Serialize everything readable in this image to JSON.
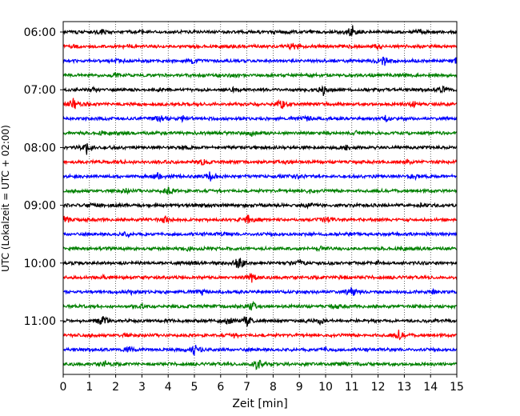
{
  "chart_data": {
    "type": "line",
    "xlabel": "Zeit  [min]",
    "ylabel": "UTC (Lokalzeit = UTC + 02:00)",
    "xlim": [
      0,
      15
    ],
    "x_ticks": [
      "0",
      "1",
      "2",
      "3",
      "4",
      "5",
      "6",
      "7",
      "8",
      "9",
      "10",
      "11",
      "12",
      "13",
      "14",
      "15"
    ],
    "y_ticks": [
      "06:00",
      "07:00",
      "08:00",
      "09:00",
      "10:00",
      "11:00"
    ],
    "grid": "vertical-dotted",
    "colors": [
      "#000000",
      "#ff0000",
      "#0000ff",
      "#008000"
    ],
    "trace_interval_min": 15,
    "traces": [
      {
        "start": "06:00",
        "color": "#000000",
        "events": [
          [
            1.5,
            0.8
          ],
          [
            3.0,
            0.7
          ],
          [
            8.0,
            0.6
          ],
          [
            11.0,
            3.5
          ],
          [
            13.6,
            1.2
          ]
        ]
      },
      {
        "start": "06:15",
        "color": "#ff0000",
        "events": [
          [
            0.4,
            1.0
          ],
          [
            2.5,
            0.8
          ],
          [
            8.8,
            1.5
          ],
          [
            12.0,
            0.8
          ]
        ]
      },
      {
        "start": "06:30",
        "color": "#0000ff",
        "events": [
          [
            2.0,
            0.6
          ],
          [
            4.9,
            1.0
          ],
          [
            12.2,
            2.8
          ],
          [
            15.0,
            1.5
          ]
        ]
      },
      {
        "start": "06:45",
        "color": "#008000",
        "events": [
          [
            2.0,
            0.7
          ],
          [
            6.5,
            0.8
          ],
          [
            9.5,
            0.6
          ],
          [
            13.0,
            0.7
          ]
        ]
      },
      {
        "start": "07:00",
        "color": "#000000",
        "events": [
          [
            1.2,
            0.8
          ],
          [
            3.7,
            0.8
          ],
          [
            6.5,
            0.6
          ],
          [
            9.9,
            2.5
          ],
          [
            14.5,
            1.8
          ]
        ]
      },
      {
        "start": "07:15",
        "color": "#ff0000",
        "events": [
          [
            0.4,
            2.8
          ],
          [
            8.3,
            2.0
          ],
          [
            13.4,
            1.3
          ]
        ]
      },
      {
        "start": "07:30",
        "color": "#0000ff",
        "events": [
          [
            3.7,
            1.8
          ],
          [
            4.6,
            1.2
          ],
          [
            9.3,
            0.9
          ],
          [
            12.3,
            1.3
          ]
        ]
      },
      {
        "start": "07:45",
        "color": "#008000",
        "events": [
          [
            1.5,
            0.7
          ],
          [
            7.2,
            1.0
          ],
          [
            11.2,
            0.7
          ]
        ]
      },
      {
        "start": "08:00",
        "color": "#000000",
        "events": [
          [
            0.9,
            3.2
          ],
          [
            4.6,
            0.8
          ],
          [
            10.8,
            0.9
          ]
        ]
      },
      {
        "start": "08:15",
        "color": "#ff0000",
        "events": [
          [
            2.3,
            0.7
          ],
          [
            5.3,
            1.0
          ],
          [
            8.5,
            0.8
          ],
          [
            13.1,
            1.0
          ]
        ]
      },
      {
        "start": "08:30",
        "color": "#0000ff",
        "events": [
          [
            3.6,
            1.5
          ],
          [
            5.6,
            2.2
          ],
          [
            9.0,
            1.6
          ],
          [
            13.4,
            1.0
          ]
        ]
      },
      {
        "start": "08:45",
        "color": "#008000",
        "events": [
          [
            2.4,
            0.8
          ],
          [
            4.0,
            1.8
          ],
          [
            9.4,
            0.8
          ]
        ]
      },
      {
        "start": "09:00",
        "color": "#000000",
        "events": [
          [
            1.1,
            0.7
          ],
          [
            5.5,
            1.0
          ],
          [
            9.4,
            0.8
          ],
          [
            13.6,
            0.6
          ]
        ]
      },
      {
        "start": "09:15",
        "color": "#ff0000",
        "events": [
          [
            0.1,
            1.8
          ],
          [
            3.9,
            1.6
          ],
          [
            7.1,
            2.8
          ],
          [
            10.0,
            1.6
          ]
        ]
      },
      {
        "start": "09:30",
        "color": "#0000ff",
        "events": [
          [
            2.4,
            1.0
          ],
          [
            6.1,
            0.7
          ],
          [
            11.0,
            0.8
          ]
        ]
      },
      {
        "start": "09:45",
        "color": "#008000",
        "events": [
          [
            4.8,
            0.9
          ],
          [
            9.9,
            1.2
          ],
          [
            12.9,
            0.7
          ]
        ]
      },
      {
        "start": "10:00",
        "color": "#000000",
        "events": [
          [
            4.9,
            0.8
          ],
          [
            6.7,
            3.2
          ],
          [
            9.0,
            1.3
          ],
          [
            12.0,
            0.6
          ]
        ]
      },
      {
        "start": "10:15",
        "color": "#ff0000",
        "events": [
          [
            1.5,
            0.7
          ],
          [
            7.2,
            2.2
          ],
          [
            10.6,
            0.8
          ]
        ]
      },
      {
        "start": "10:30",
        "color": "#0000ff",
        "events": [
          [
            2.6,
            0.8
          ],
          [
            5.3,
            1.0
          ],
          [
            11.0,
            2.4
          ],
          [
            14.1,
            1.0
          ]
        ]
      },
      {
        "start": "10:45",
        "color": "#008000",
        "events": [
          [
            3.0,
            0.7
          ],
          [
            7.2,
            2.4
          ],
          [
            10.4,
            0.8
          ]
        ]
      },
      {
        "start": "11:00",
        "color": "#000000",
        "events": [
          [
            1.5,
            2.8
          ],
          [
            6.3,
            2.0
          ],
          [
            7.0,
            3.0
          ],
          [
            9.8,
            1.2
          ]
        ]
      },
      {
        "start": "11:15",
        "color": "#ff0000",
        "events": [
          [
            2.4,
            0.7
          ],
          [
            6.5,
            0.9
          ],
          [
            12.8,
            2.2
          ]
        ]
      },
      {
        "start": "11:30",
        "color": "#0000ff",
        "events": [
          [
            2.5,
            1.0
          ],
          [
            5.0,
            2.3
          ],
          [
            10.0,
            1.0
          ]
        ]
      },
      {
        "start": "11:45",
        "color": "#008000",
        "events": [
          [
            1.6,
            1.2
          ],
          [
            7.4,
            3.0
          ],
          [
            10.6,
            0.8
          ]
        ]
      }
    ]
  }
}
